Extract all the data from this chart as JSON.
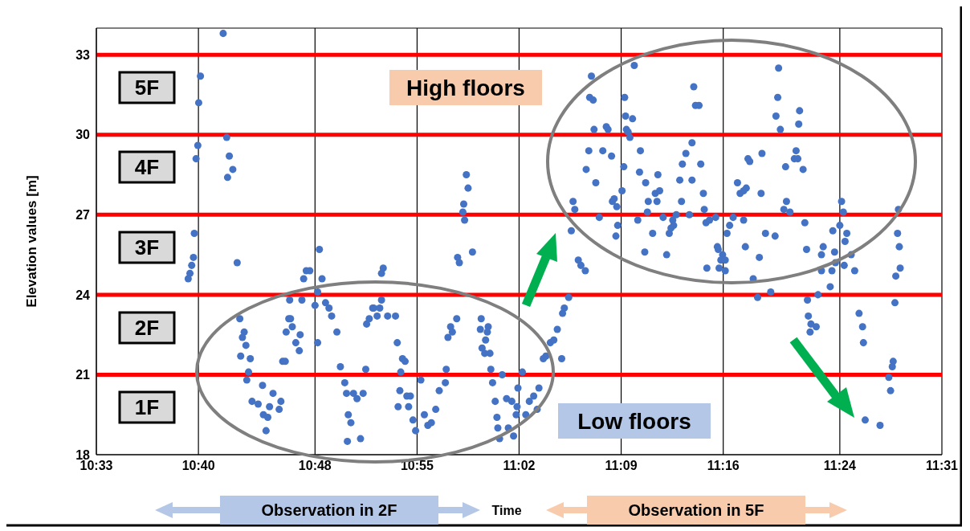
{
  "chart_data": {
    "type": "scatter",
    "xlabel": "Time",
    "ylabel": "Elevation values [m]",
    "xlim": [
      10.55,
      11.5167
    ],
    "ylim": [
      18,
      34
    ],
    "xticks": [
      {
        "value": 10.55,
        "label": "10:33"
      },
      {
        "value": 10.6667,
        "label": "10:40"
      },
      {
        "value": 10.8,
        "label": "10:48"
      },
      {
        "value": 10.9167,
        "label": "10:55"
      },
      {
        "value": 11.0333,
        "label": "11:02"
      },
      {
        "value": 11.15,
        "label": "11:09"
      },
      {
        "value": 11.2667,
        "label": "11:16"
      },
      {
        "value": 11.4,
        "label": "11:24"
      },
      {
        "value": 11.5167,
        "label": "11:31"
      }
    ],
    "yticks": [
      18,
      21,
      24,
      27,
      30,
      33
    ],
    "grid": true,
    "marker": "circle",
    "ref_lines": [
      {
        "axis": "y",
        "value": 21,
        "color": "#ff0000"
      },
      {
        "axis": "y",
        "value": 24,
        "color": "#ff0000"
      },
      {
        "axis": "y",
        "value": 27,
        "color": "#ff0000"
      },
      {
        "axis": "y",
        "value": 30,
        "color": "#ff0000"
      },
      {
        "axis": "y",
        "value": 33,
        "color": "#ff0000"
      }
    ],
    "annotations": [
      "5F",
      "4F",
      "3F",
      "2F",
      "1F",
      "High floors",
      "Low floors",
      "Observation in 2F",
      "Observation in 5F"
    ],
    "series": [
      {
        "color": "#4472c4",
        "x": [
          10.695,
          10.669,
          10.667,
          10.666,
          10.664,
          10.699,
          10.702,
          10.706,
          10.7,
          10.662,
          10.661,
          10.659,
          10.657,
          10.655,
          10.711,
          10.805,
          10.79,
          10.787,
          10.794,
          10.808,
          10.803,
          10.771,
          10.785,
          10.8,
          10.812,
          10.816,
          10.819,
          10.825,
          10.803,
          10.714,
          10.719,
          10.717,
          10.721,
          10.715,
          10.726,
          10.724,
          10.722,
          10.74,
          10.728,
          10.735,
          10.752,
          10.761,
          10.748,
          10.759,
          10.741,
          10.746,
          10.744,
          10.77,
          10.772,
          10.767,
          10.774,
          10.783,
          10.778,
          10.782,
          10.763,
          10.766,
          10.829,
          10.834,
          10.836,
          10.844,
          10.848,
          10.855,
          10.838,
          10.841,
          10.837,
          10.852,
          10.858,
          10.859,
          10.862,
          10.866,
          10.878,
          10.876,
          10.876,
          10.867,
          10.874,
          10.871,
          10.883,
          10.892,
          10.894,
          10.9,
          10.903,
          10.898,
          10.897,
          10.895,
          10.907,
          10.905,
          10.909,
          10.912,
          10.915,
          10.921,
          10.925,
          10.929,
          10.933,
          10.938,
          10.942,
          10.949,
          10.95,
          10.952,
          10.955,
          10.957,
          10.962,
          10.963,
          10.965,
          10.98,
          10.969,
          10.971,
          10.97,
          10.975,
          10.973,
          10.99,
          10.989,
          10.998,
          10.997,
          10.995,
          10.991,
          10.994,
          11.0,
          11.001,
          11.003,
          11.006,
          11.008,
          11.009,
          11.011,
          11.014,
          11.019,
          11.025,
          11.031,
          11.03,
          11.021,
          11.027,
          11.032,
          11.037,
          11.041,
          11.045,
          11.05,
          11.054,
          11.056,
          11.061,
          11.064,
          11.069,
          11.073,
          11.077,
          11.082,
          11.083,
          11.085,
          11.09,
          11.101,
          11.104,
          11.109,
          11.093,
          11.095,
          11.097,
          11.116,
          11.114,
          11.118,
          11.119,
          11.113,
          11.11,
          11.121,
          11.125,
          11.129,
          11.133,
          11.135,
          11.139,
          11.14,
          11.142,
          11.145,
          11.146,
          11.144,
          11.151,
          11.153,
          11.154,
          11.155,
          11.156,
          11.158,
          11.16,
          11.163,
          11.165,
          11.169,
          11.171,
          11.172,
          11.177,
          11.178,
          11.18,
          11.181,
          11.186,
          11.189,
          11.192,
          11.194,
          11.191,
          11.198,
          11.202,
          11.205,
          11.207,
          11.21,
          11.209,
          11.213,
          11.217,
          11.219,
          11.22,
          11.224,
          11.228,
          11.231,
          11.231,
          11.233,
          11.235,
          11.239,
          11.241,
          11.244,
          11.245,
          11.247,
          11.251,
          11.258,
          11.26,
          11.261,
          11.266,
          11.264,
          11.262,
          11.269,
          11.269,
          11.248,
          11.271,
          11.274,
          11.278,
          11.283,
          11.286,
          11.29,
          11.293,
          11.295,
          11.297,
          11.29,
          11.292,
          11.301,
          11.33,
          11.329,
          11.327,
          11.332,
          11.354,
          11.353,
          11.311,
          11.35,
          11.348,
          11.352,
          11.338,
          11.358,
          11.31,
          11.339,
          11.336,
          11.343,
          11.36,
          11.315,
          11.326,
          11.362,
          11.308,
          11.381,
          11.379,
          11.394,
          11.392,
          11.4,
          11.402,
          11.404,
          11.408,
          11.406,
          11.413,
          11.405,
          11.391,
          11.379,
          11.395,
          11.417,
          11.389,
          11.321,
          11.306,
          11.375,
          11.363,
          11.364,
          11.367,
          11.373,
          11.366,
          11.422,
          11.426,
          11.427,
          11.429,
          11.446,
          11.467,
          11.466,
          11.468,
          11.469,
          11.464,
          11.463,
          11.461,
          11.46,
          11.456,
          11.458
        ],
        "values": [
          33.8,
          32.2,
          31.2,
          29.6,
          29.1,
          29.9,
          29.2,
          28.7,
          28.4,
          26.3,
          25.4,
          25.1,
          24.8,
          24.6,
          25.2,
          25.7,
          24.9,
          24.6,
          24.9,
          24.6,
          24.1,
          23.8,
          23.8,
          23.6,
          23.7,
          23.5,
          23.2,
          22.6,
          22.2,
          23.1,
          22.6,
          22.4,
          22.1,
          21.7,
          21.6,
          21.1,
          20.8,
          20.6,
          20.0,
          19.9,
          20.3,
          20.0,
          19.8,
          19.7,
          19.5,
          19.4,
          18.9,
          23.1,
          23.1,
          22.6,
          22.8,
          22.5,
          22.2,
          21.9,
          21.5,
          21.5,
          21.3,
          20.7,
          20.3,
          20.3,
          20.1,
          20.3,
          19.5,
          19.2,
          18.5,
          18.6,
          21.2,
          22.9,
          23.1,
          23.5,
          25.0,
          24.8,
          23.8,
          23.5,
          23.5,
          23.2,
          23.2,
          23.2,
          22.2,
          21.6,
          21.5,
          21.1,
          20.4,
          19.8,
          19.8,
          20.2,
          20.2,
          19.3,
          18.9,
          20.8,
          19.5,
          19.1,
          19.2,
          19.7,
          20.4,
          20.7,
          21.2,
          22.4,
          22.8,
          22.6,
          23.1,
          25.4,
          25.2,
          25.6,
          27.1,
          26.8,
          27.4,
          28.0,
          28.5,
          23.1,
          22.7,
          22.8,
          22.6,
          22.3,
          22.0,
          21.8,
          21.8,
          21.2,
          20.7,
          20.0,
          19.4,
          19.0,
          18.6,
          21.0,
          20.1,
          20.0,
          19.8,
          19.5,
          19.0,
          18.7,
          20.5,
          21.1,
          19.5,
          20.0,
          20.2,
          19.7,
          20.5,
          21.6,
          21.7,
          22.2,
          22.3,
          22.7,
          21.6,
          23.3,
          23.5,
          23.9,
          25.3,
          25.1,
          24.9,
          26.4,
          27.5,
          27.2,
          32.2,
          31.4,
          31.3,
          30.2,
          29.4,
          28.7,
          28.2,
          26.9,
          29.4,
          30.3,
          30.2,
          29.2,
          27.5,
          27.6,
          27.3,
          26.6,
          26.2,
          27.9,
          28.8,
          31.4,
          30.7,
          30.2,
          30.1,
          29.9,
          30.6,
          32.6,
          26.8,
          28.6,
          29.4,
          25.6,
          28.2,
          27.1,
          27.5,
          26.3,
          27.8,
          28.5,
          27.9,
          27.5,
          26.9,
          25.5,
          26.3,
          26.5,
          26.6,
          26.8,
          27.0,
          28.3,
          27.5,
          28.9,
          29.3,
          27.0,
          28.3,
          29.7,
          31.8,
          31.1,
          31.1,
          28.9,
          27.8,
          27.2,
          26.7,
          26.8,
          26.9,
          25.8,
          25.7,
          25.5,
          25.3,
          25.0,
          24.9,
          25.3,
          25.0,
          26.3,
          26.6,
          26.9,
          28.2,
          27.8,
          27.9,
          28.0,
          29.1,
          29.0,
          26.8,
          25.8,
          24.6,
          32.5,
          31.4,
          30.7,
          30.2,
          30.9,
          30.4,
          29.3,
          29.4,
          29.1,
          29.1,
          28.8,
          28.7,
          27.8,
          27.5,
          27.2,
          27.1,
          26.7,
          26.3,
          26.2,
          25.7,
          25.4,
          25.8,
          25.5,
          25.6,
          26.4,
          26.6,
          27.5,
          27.1,
          26.3,
          26.0,
          25.5,
          25.1,
          24.9,
          24.9,
          25.2,
          24.9,
          24.3,
          24.1,
          23.9,
          24.0,
          23.8,
          23.2,
          22.9,
          22.8,
          22.6,
          23.3,
          22.8,
          22.2,
          19.3,
          19.1,
          27.2,
          26.3,
          25.8,
          25.0,
          24.7,
          23.7,
          21.5,
          21.3,
          20.9,
          20.4
        ]
      }
    ]
  }
}
